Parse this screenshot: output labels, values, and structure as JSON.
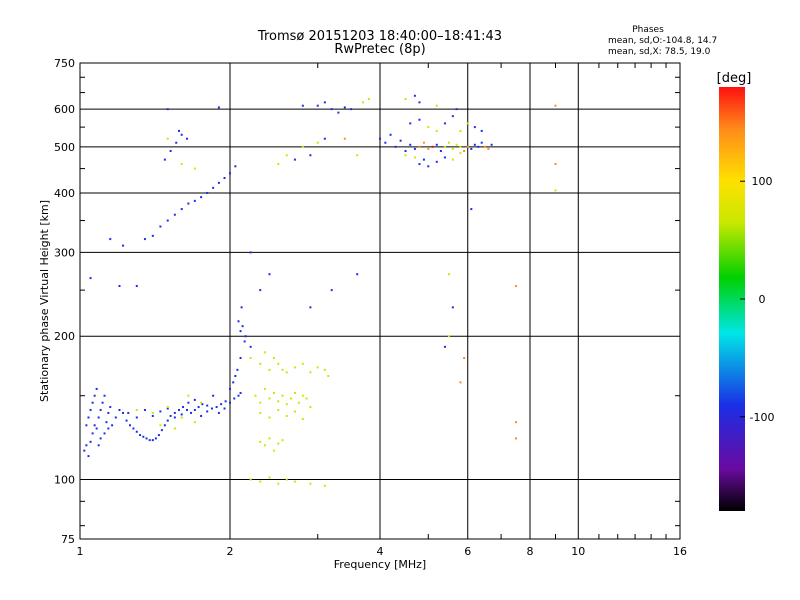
{
  "chart_data": {
    "type": "scatter",
    "title": "Tromsø 20151203 18:40:00–18:41:43",
    "subtitle": "RwPretec (8p)",
    "xlabel": "Frequency [MHz]",
    "ylabel": "Stationary phase Virtual Height [km]",
    "x_scale": "log",
    "y_scale": "log",
    "xlim": [
      1,
      16
    ],
    "ylim": [
      75,
      750
    ],
    "x_ticks": [
      {
        "value": 1,
        "label": "1"
      },
      {
        "value": 2,
        "label": "2"
      },
      {
        "value": 4,
        "label": "4"
      },
      {
        "value": 6,
        "label": "6"
      },
      {
        "value": 8,
        "label": "8"
      },
      {
        "value": 10,
        "label": "10"
      },
      {
        "value": 16,
        "label": "16"
      }
    ],
    "y_ticks": [
      {
        "value": 75,
        "label": "75"
      },
      {
        "value": 100,
        "label": "100"
      },
      {
        "value": 200,
        "label": "200"
      },
      {
        "value": 300,
        "label": "300"
      },
      {
        "value": 400,
        "label": "400"
      },
      {
        "value": 500,
        "label": "500"
      },
      {
        "value": 600,
        "label": "600"
      },
      {
        "value": 750,
        "label": "750"
      }
    ],
    "grid": true,
    "stats": {
      "heading": "Phases",
      "o_line": "mean, sd,O:-104.8, 14.7",
      "x_line": "mean, sd,X:  78.5, 19.0"
    },
    "colorbar": {
      "label": "[deg]",
      "min": -180,
      "max": 180,
      "ticks": [
        {
          "value": 100,
          "label": "100"
        },
        {
          "value": 0,
          "label": "0"
        },
        {
          "value": -100,
          "label": "-100"
        }
      ]
    },
    "colors": {
      "o_mode": "#1a2fe6",
      "x_mode": "#c8e800",
      "orange": "#ff8c1a",
      "red": "#e81010",
      "purple": "#4b1a8c"
    },
    "points": [
      [
        1.02,
        115,
        -110
      ],
      [
        1.03,
        118,
        -105
      ],
      [
        1.04,
        112,
        -108
      ],
      [
        1.05,
        120,
        -100
      ],
      [
        1.06,
        125,
        -112
      ],
      [
        1.07,
        130,
        -95
      ],
      [
        1.08,
        128,
        -110
      ],
      [
        1.09,
        135,
        -105
      ],
      [
        1.1,
        140,
        -100
      ],
      [
        1.11,
        145,
        -108
      ],
      [
        1.12,
        150,
        -115
      ],
      [
        1.13,
        132,
        -100
      ],
      [
        1.14,
        138,
        -105
      ],
      [
        1.15,
        142,
        -110
      ],
      [
        1.03,
        130,
        -100
      ],
      [
        1.04,
        135,
        -105
      ],
      [
        1.05,
        140,
        -95
      ],
      [
        1.06,
        145,
        -110
      ],
      [
        1.07,
        150,
        -120
      ],
      [
        1.08,
        155,
        -100
      ],
      [
        1.09,
        118,
        -105
      ],
      [
        1.1,
        122,
        -110
      ],
      [
        1.12,
        125,
        -100
      ],
      [
        1.14,
        128,
        -95
      ],
      [
        1.16,
        130,
        -105
      ],
      [
        1.18,
        135,
        -110
      ],
      [
        1.2,
        140,
        -100
      ],
      [
        1.22,
        138,
        -105
      ],
      [
        1.24,
        133,
        -110
      ],
      [
        1.26,
        130,
        -100
      ],
      [
        1.28,
        128,
        -95
      ],
      [
        1.3,
        126,
        -105
      ],
      [
        1.32,
        124,
        -110
      ],
      [
        1.34,
        123,
        -100
      ],
      [
        1.36,
        122,
        -105
      ],
      [
        1.38,
        121,
        -110
      ],
      [
        1.4,
        121,
        -100
      ],
      [
        1.42,
        122,
        -95
      ],
      [
        1.44,
        124,
        -105
      ],
      [
        1.46,
        127,
        -110
      ],
      [
        1.48,
        130,
        -100
      ],
      [
        1.5,
        133,
        -105
      ],
      [
        1.52,
        136,
        -110
      ],
      [
        1.55,
        138,
        -100
      ],
      [
        1.58,
        140,
        -95
      ],
      [
        1.61,
        142,
        -105
      ],
      [
        1.64,
        140,
        -110
      ],
      [
        1.67,
        138,
        -100
      ],
      [
        1.7,
        140,
        -105
      ],
      [
        1.73,
        142,
        -110
      ],
      [
        1.76,
        144,
        -100
      ],
      [
        1.8,
        143,
        -95
      ],
      [
        1.84,
        141,
        -105
      ],
      [
        1.88,
        142,
        -110
      ],
      [
        1.92,
        144,
        -100
      ],
      [
        1.96,
        146,
        -105
      ],
      [
        2.0,
        145,
        -110
      ],
      [
        2.04,
        148,
        -100
      ],
      [
        2.08,
        150,
        -105
      ],
      [
        2.1,
        152,
        -95
      ],
      [
        1.25,
        138,
        -100
      ],
      [
        1.3,
        135,
        -105
      ],
      [
        1.35,
        140,
        -110
      ],
      [
        1.4,
        136,
        -100
      ],
      [
        1.45,
        139,
        -105
      ],
      [
        1.5,
        141,
        -95
      ],
      [
        1.55,
        135,
        -110
      ],
      [
        1.6,
        137,
        -100
      ],
      [
        1.65,
        145,
        -105
      ],
      [
        1.7,
        147,
        -110
      ],
      [
        1.75,
        136,
        -100
      ],
      [
        1.8,
        139,
        -105
      ],
      [
        1.85,
        150,
        -95
      ],
      [
        1.9,
        138,
        -110
      ],
      [
        1.95,
        141,
        -100
      ],
      [
        2.0,
        155,
        -105
      ],
      [
        2.03,
        160,
        -110
      ],
      [
        2.05,
        165,
        -100
      ],
      [
        2.07,
        170,
        -105
      ],
      [
        1.3,
        140,
        90
      ],
      [
        1.4,
        138,
        95
      ],
      [
        1.5,
        142,
        85
      ],
      [
        1.6,
        135,
        100
      ],
      [
        1.65,
        150,
        90
      ],
      [
        1.7,
        132,
        95
      ],
      [
        1.75,
        145,
        85
      ],
      [
        1.55,
        128,
        100
      ],
      [
        1.45,
        130,
        88
      ],
      [
        2.1,
        205,
        -105
      ],
      [
        2.12,
        210,
        -100
      ],
      [
        2.15,
        200,
        -110
      ],
      [
        2.08,
        215,
        -95
      ],
      [
        2.14,
        195,
        -105
      ],
      [
        2.11,
        230,
        -110
      ],
      [
        2.2,
        180,
        90
      ],
      [
        2.3,
        175,
        95
      ],
      [
        2.35,
        185,
        85
      ],
      [
        2.4,
        170,
        100
      ],
      [
        2.45,
        180,
        90
      ],
      [
        2.5,
        175,
        95
      ],
      [
        2.55,
        170,
        85
      ],
      [
        2.6,
        168,
        100
      ],
      [
        2.7,
        172,
        90
      ],
      [
        2.8,
        175,
        95
      ],
      [
        2.9,
        168,
        85
      ],
      [
        3.0,
        172,
        100
      ],
      [
        3.1,
        170,
        90
      ],
      [
        3.15,
        165,
        95
      ],
      [
        2.25,
        150,
        90
      ],
      [
        2.3,
        145,
        95
      ],
      [
        2.35,
        155,
        85
      ],
      [
        2.4,
        148,
        100
      ],
      [
        2.45,
        152,
        90
      ],
      [
        2.5,
        146,
        95
      ],
      [
        2.55,
        150,
        85
      ],
      [
        2.6,
        144,
        100
      ],
      [
        2.65,
        148,
        90
      ],
      [
        2.7,
        152,
        95
      ],
      [
        2.75,
        145,
        85
      ],
      [
        2.8,
        150,
        100
      ],
      [
        2.85,
        148,
        90
      ],
      [
        2.9,
        142,
        95
      ],
      [
        2.3,
        138,
        88
      ],
      [
        2.4,
        135,
        92
      ],
      [
        2.5,
        140,
        86
      ],
      [
        2.6,
        136,
        98
      ],
      [
        2.7,
        139,
        90
      ],
      [
        2.8,
        134,
        94
      ],
      [
        2.3,
        120,
        90
      ],
      [
        2.35,
        118,
        95
      ],
      [
        2.4,
        122,
        85
      ],
      [
        2.45,
        115,
        100
      ],
      [
        2.5,
        119,
        90
      ],
      [
        2.55,
        121,
        95
      ],
      [
        2.2,
        100,
        90
      ],
      [
        2.3,
        99,
        95
      ],
      [
        2.4,
        101,
        85
      ],
      [
        2.5,
        98,
        100
      ],
      [
        2.6,
        100,
        90
      ],
      [
        2.7,
        99,
        95
      ],
      [
        2.9,
        98,
        85
      ],
      [
        3.1,
        97,
        100
      ],
      [
        1.35,
        320,
        -105
      ],
      [
        1.4,
        325,
        -110
      ],
      [
        1.45,
        340,
        -100
      ],
      [
        1.5,
        350,
        -105
      ],
      [
        1.55,
        360,
        -110
      ],
      [
        1.6,
        370,
        -100
      ],
      [
        1.65,
        380,
        -105
      ],
      [
        1.7,
        385,
        -110
      ],
      [
        1.75,
        392,
        -100
      ],
      [
        1.8,
        400,
        -105
      ],
      [
        1.85,
        410,
        -110
      ],
      [
        1.9,
        420,
        -100
      ],
      [
        1.95,
        430,
        -105
      ],
      [
        2.0,
        440,
        -110
      ],
      [
        2.05,
        455,
        -100
      ],
      [
        1.48,
        470,
        -105
      ],
      [
        1.52,
        490,
        -110
      ],
      [
        1.56,
        510,
        -100
      ],
      [
        1.6,
        530,
        -105
      ],
      [
        1.64,
        520,
        -110
      ],
      [
        1.58,
        540,
        -100
      ],
      [
        1.5,
        600,
        -105
      ],
      [
        1.9,
        605,
        -110
      ],
      [
        1.2,
        255,
        -105
      ],
      [
        1.3,
        255,
        -110
      ],
      [
        1.05,
        265,
        -100
      ],
      [
        1.22,
        310,
        -105
      ],
      [
        1.15,
        320,
        -110
      ],
      [
        1.6,
        460,
        90
      ],
      [
        1.5,
        520,
        95
      ],
      [
        1.7,
        450,
        85
      ],
      [
        2.5,
        460,
        90
      ],
      [
        2.6,
        480,
        95
      ],
      [
        2.8,
        500,
        85
      ],
      [
        3.0,
        510,
        100
      ],
      [
        2.7,
        470,
        -105
      ],
      [
        2.9,
        480,
        -110
      ],
      [
        3.1,
        520,
        -100
      ],
      [
        2.2,
        300,
        -105
      ],
      [
        2.3,
        250,
        -110
      ],
      [
        2.4,
        270,
        -100
      ],
      [
        2.9,
        230,
        -105
      ],
      [
        3.2,
        250,
        -110
      ],
      [
        3.6,
        270,
        -100
      ],
      [
        2.1,
        180,
        -105
      ],
      [
        2.2,
        190,
        -110
      ],
      [
        3.0,
        610,
        -105
      ],
      [
        3.1,
        620,
        -110
      ],
      [
        3.2,
        600,
        -100
      ],
      [
        3.4,
        605,
        -105
      ],
      [
        3.5,
        600,
        -110
      ],
      [
        3.3,
        590,
        -100
      ],
      [
        3.7,
        620,
        90
      ],
      [
        3.8,
        630,
        95
      ],
      [
        2.8,
        610,
        -105
      ],
      [
        3.4,
        520,
        130
      ],
      [
        3.6,
        480,
        90
      ],
      [
        4.0,
        520,
        -105
      ],
      [
        4.1,
        510,
        -110
      ],
      [
        4.2,
        530,
        -100
      ],
      [
        4.3,
        500,
        -105
      ],
      [
        4.4,
        515,
        -110
      ],
      [
        4.5,
        490,
        -100
      ],
      [
        4.6,
        505,
        -105
      ],
      [
        4.7,
        495,
        -110
      ],
      [
        4.8,
        500,
        150
      ],
      [
        4.9,
        510,
        160
      ],
      [
        5.0,
        495,
        140
      ],
      [
        5.1,
        500,
        170
      ],
      [
        5.2,
        505,
        -105
      ],
      [
        5.3,
        490,
        -110
      ],
      [
        5.4,
        500,
        90
      ],
      [
        5.5,
        510,
        95
      ],
      [
        5.6,
        495,
        85
      ],
      [
        5.7,
        505,
        100
      ],
      [
        5.8,
        500,
        90
      ],
      [
        5.9,
        490,
        150
      ],
      [
        6.0,
        500,
        160
      ],
      [
        6.1,
        495,
        -105
      ],
      [
        6.2,
        505,
        -110
      ],
      [
        6.3,
        500,
        -100
      ],
      [
        6.4,
        510,
        -105
      ],
      [
        6.5,
        500,
        150
      ],
      [
        6.6,
        495,
        160
      ],
      [
        6.7,
        505,
        -110
      ],
      [
        4.8,
        460,
        -105
      ],
      [
        4.9,
        470,
        -110
      ],
      [
        5.0,
        455,
        -100
      ],
      [
        5.2,
        465,
        -105
      ],
      [
        5.4,
        475,
        -110
      ],
      [
        5.6,
        470,
        90
      ],
      [
        5.8,
        485,
        95
      ],
      [
        4.5,
        480,
        90
      ],
      [
        4.7,
        475,
        95
      ],
      [
        4.6,
        560,
        -105
      ],
      [
        4.8,
        570,
        -110
      ],
      [
        5.0,
        550,
        90
      ],
      [
        5.2,
        540,
        95
      ],
      [
        5.4,
        560,
        -105
      ],
      [
        5.6,
        580,
        -110
      ],
      [
        5.8,
        540,
        90
      ],
      [
        6.0,
        560,
        95
      ],
      [
        6.2,
        550,
        -105
      ],
      [
        6.4,
        540,
        -110
      ],
      [
        5.7,
        600,
        -105
      ],
      [
        5.2,
        610,
        90
      ],
      [
        4.8,
        620,
        -105
      ],
      [
        4.5,
        630,
        95
      ],
      [
        4.7,
        640,
        -110
      ],
      [
        6.1,
        370,
        -105
      ],
      [
        5.6,
        230,
        -110
      ],
      [
        5.8,
        160,
        140
      ],
      [
        5.5,
        200,
        90
      ],
      [
        5.5,
        270,
        95
      ],
      [
        5.4,
        190,
        -105
      ],
      [
        5.9,
        180,
        150
      ],
      [
        7.5,
        255,
        140
      ],
      [
        7.5,
        132,
        150
      ],
      [
        7.5,
        122,
        160
      ],
      [
        9.0,
        460,
        160
      ],
      [
        9.0,
        610,
        140
      ],
      [
        9.0,
        405,
        100
      ]
    ]
  }
}
